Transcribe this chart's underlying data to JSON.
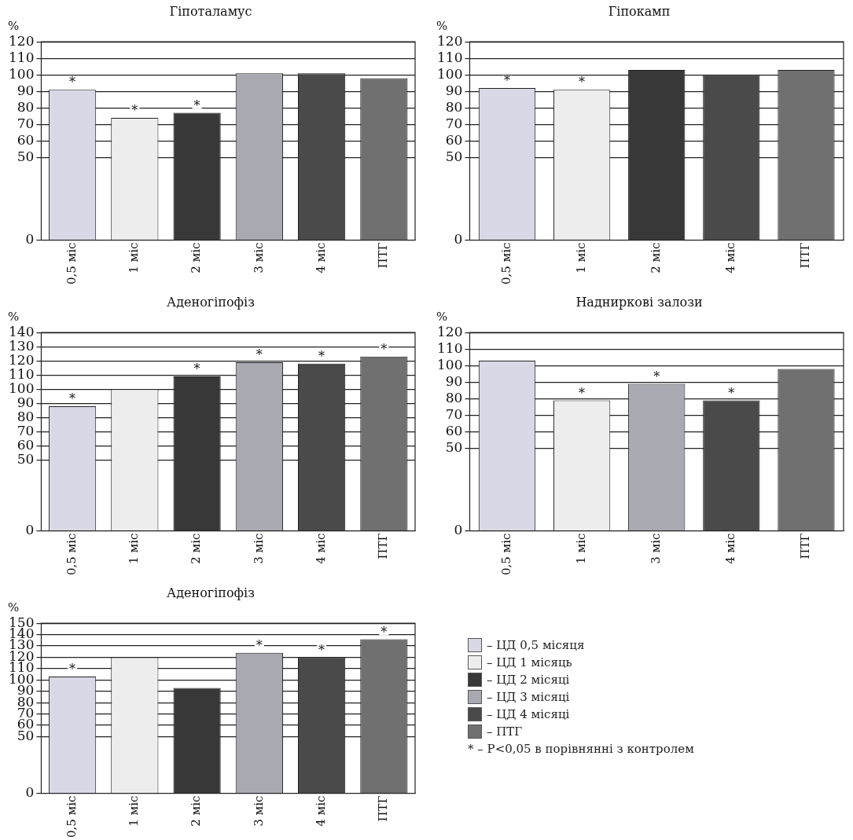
{
  "chart_data": [
    {
      "type": "bar",
      "title": "Гіпоталамус",
      "ylabel": "%",
      "categories": [
        "0,5 міс",
        "1 міс",
        "2 міс",
        "3 міс",
        "4 міс",
        "ПТГ"
      ],
      "values": [
        91,
        74,
        77,
        101,
        101,
        98
      ],
      "colors": [
        "#d8d8e6",
        "#ededed",
        "#383838",
        "#a9a9b2",
        "#4a4a4a",
        "#707070"
      ],
      "ylim": [
        0,
        120
      ],
      "yticks": [
        0,
        50,
        60,
        70,
        80,
        90,
        100,
        110,
        120
      ],
      "grid": "y",
      "legend": false,
      "annotations": [
        {
          "text": "*",
          "x": "0,5 міс",
          "y": 91
        },
        {
          "text": "*",
          "x": "1 міс",
          "y": 74
        },
        {
          "text": "*",
          "x": "2 міс",
          "y": 77
        }
      ]
    },
    {
      "type": "bar",
      "title": "Гіпокамп",
      "ylabel": "%",
      "categories": [
        "0,5 міс",
        "1 міс",
        "2 міс",
        "4 міс",
        "ПТГ"
      ],
      "values": [
        92,
        91,
        103,
        100,
        103
      ],
      "colors": [
        "#d8d8e6",
        "#ededed",
        "#383838",
        "#4a4a4a",
        "#707070"
      ],
      "ylim": [
        0,
        120
      ],
      "yticks": [
        0,
        50,
        60,
        70,
        80,
        90,
        100,
        110,
        120
      ],
      "grid": "y",
      "legend": false,
      "annotations": [
        {
          "text": "*",
          "x": "0,5 міс",
          "y": 92
        },
        {
          "text": "*",
          "x": "1 міс",
          "y": 91
        }
      ]
    },
    {
      "type": "bar",
      "title": "Аденогіпофіз",
      "ylabel": "%",
      "categories": [
        "0,5 міс",
        "1 міс",
        "2 міс",
        "3 міс",
        "4 міс",
        "ПТГ"
      ],
      "values": [
        88,
        100,
        109,
        119,
        118,
        123
      ],
      "colors": [
        "#d8d8e6",
        "#ededed",
        "#383838",
        "#a9a9b2",
        "#4a4a4a",
        "#707070"
      ],
      "ylim": [
        0,
        140
      ],
      "yticks": [
        0,
        50,
        60,
        70,
        80,
        90,
        100,
        110,
        120,
        130,
        140
      ],
      "grid": "y",
      "legend": false,
      "annotations": [
        {
          "text": "*",
          "x": "0,5 міс",
          "y": 88
        },
        {
          "text": "*",
          "x": "2 міс",
          "y": 109
        },
        {
          "text": "*",
          "x": "3 міс",
          "y": 119
        },
        {
          "text": "*",
          "x": "4 міс",
          "y": 118
        },
        {
          "text": "*",
          "x": "ПТГ",
          "y": 123
        }
      ]
    },
    {
      "type": "bar",
      "title": "Надниркові залози",
      "ylabel": "%",
      "categories": [
        "0,5 міс",
        "1 міс",
        "3 міс",
        "4 міс",
        "ПТГ"
      ],
      "values": [
        103,
        79,
        89,
        79,
        98
      ],
      "colors": [
        "#d8d8e6",
        "#ededed",
        "#a9a9b2",
        "#4a4a4a",
        "#707070"
      ],
      "ylim": [
        0,
        120
      ],
      "yticks": [
        0,
        50,
        60,
        70,
        80,
        90,
        100,
        110,
        120
      ],
      "grid": "y",
      "legend": false,
      "annotations": [
        {
          "text": "*",
          "x": "1 міс",
          "y": 79
        },
        {
          "text": "*",
          "x": "3 міс",
          "y": 89
        },
        {
          "text": "*",
          "x": "4 міс",
          "y": 79
        }
      ]
    },
    {
      "type": "bar",
      "title": "Аденогіпофіз",
      "ylabel": "%",
      "categories": [
        "0,5 міс",
        "1 міс",
        "2 міс",
        "3 міс",
        "4 міс",
        "ПТГ"
      ],
      "series": [
        {
          "name": "– ЦД 0,5 місяця",
          "color": "#d8d8e6",
          "values": [
            103,
            null,
            null,
            null,
            null,
            null
          ]
        },
        {
          "name": "– ЦД 1 місяць",
          "color": "#ededed",
          "values": [
            null,
            120,
            null,
            null,
            null,
            null
          ]
        },
        {
          "name": "– ЦД 2 місяці",
          "color": "#383838",
          "values": [
            null,
            null,
            93,
            null,
            null,
            null
          ]
        },
        {
          "name": "– ЦД 3 місяці",
          "color": "#a9a9b2",
          "values": [
            null,
            null,
            null,
            124,
            null,
            null
          ]
        },
        {
          "name": "– ЦД 4 місяці",
          "color": "#4a4a4a",
          "values": [
            null,
            null,
            null,
            null,
            120,
            null
          ]
        },
        {
          "name": "– ПТГ",
          "color": "#707070",
          "values": [
            null,
            null,
            null,
            null,
            null,
            136
          ]
        }
      ],
      "ylim": [
        0,
        150
      ],
      "yticks": [
        0,
        50,
        60,
        70,
        80,
        90,
        100,
        110,
        120,
        130,
        140,
        150
      ],
      "grid": "y",
      "legend": "right",
      "annotations": [
        {
          "text": "*",
          "x": "0,5 міс",
          "y": 103
        },
        {
          "text": "*",
          "x": "3 міс",
          "y": 124
        },
        {
          "text": "*",
          "x": "4 міс",
          "y": 120
        },
        {
          "text": "*",
          "x": "ПТГ",
          "y": 136
        },
        "* – P<0,05 в порівнянні з контролем"
      ]
    }
  ]
}
